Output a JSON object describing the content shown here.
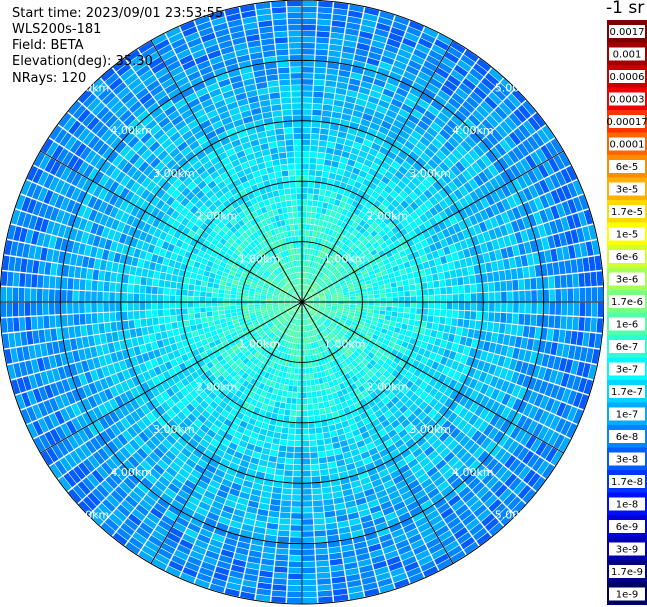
{
  "header": {
    "start_time": "Start time: 2023/09/01 23:53:55",
    "instrument": "WLS200s-181",
    "field": "Field: BETA",
    "elevation": "Elevation(deg): 35.30",
    "nrays": "NRays: 120"
  },
  "colorbar": {
    "unit_label": "-1 sr",
    "ticks": [
      "0.0017",
      "0.001",
      "0.0006",
      "0.0003",
      "0.00017",
      "0.0001",
      "6e-5",
      "3e-5",
      "1.7e-5",
      "1e-5",
      "6e-6",
      "3e-6",
      "1.7e-6",
      "1e-6",
      "6e-7",
      "3e-7",
      "1.7e-7",
      "1e-7",
      "6e-8",
      "3e-8",
      "1.7e-8",
      "1e-8",
      "6e-9",
      "3e-9",
      "1.7e-9",
      "1e-9"
    ],
    "colors": [
      "#7f0000",
      "#a00000",
      "#c80000",
      "#f00000",
      "#ff3300",
      "#ff6600",
      "#ff8c00",
      "#ffb000",
      "#ffd800",
      "#ffff00",
      "#d4ff2a",
      "#a8ff54",
      "#7cff7e",
      "#50ffa8",
      "#2cffd4",
      "#00f8ff",
      "#00d4ff",
      "#00acff",
      "#0084ff",
      "#005cff",
      "#0034ff",
      "#0010ff",
      "#0000d8",
      "#0000b0",
      "#000088",
      "#000060"
    ]
  },
  "chart_data": {
    "type": "heatmap",
    "projection": "polar (PPI scan)",
    "n_rays": 120,
    "range_unit": "km",
    "range_rings_km": [
      1,
      2,
      3,
      4,
      5
    ],
    "ring_labels": [
      "1.00km",
      "2.00km",
      "3.00km",
      "4.00km",
      "5.00km"
    ],
    "max_range_km": 5.0,
    "radial_spokes_deg": [
      0,
      30,
      60,
      90,
      120,
      150,
      180,
      210,
      240,
      270,
      300,
      330
    ],
    "background_color": "#ffffff",
    "field": "BETA",
    "elevation_deg": 35.3,
    "description_values": {
      "near_range_color_index": 11,
      "mid_range_color_index": 15,
      "far_range_color_index": 18
    }
  }
}
